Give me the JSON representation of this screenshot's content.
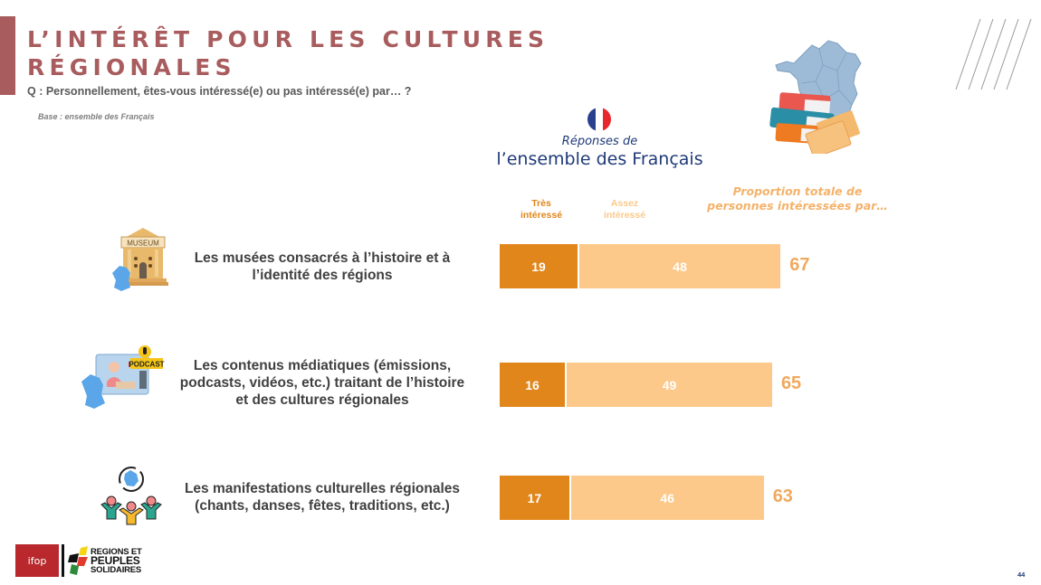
{
  "header": {
    "title_line1": "L’INTÉRÊT POUR LES CULTURES",
    "title_line2": "RÉGIONALES",
    "question": "Q : Personnellement, êtes-vous intéressé(e) ou pas intéressé(e) par… ?",
    "base": "Base : ensemble des Français",
    "accent_color": "#A95C5E"
  },
  "respondents": {
    "flag_icon": "france-flag-icon",
    "label_small": "Réponses de",
    "label_big": "l’ensemble des Français"
  },
  "chart_data": {
    "type": "bar",
    "orientation": "horizontal",
    "stacked": true,
    "categories": [
      "Les musées consacrés à l’histoire et à l’identité des régions",
      "Les contenus médiatiques (émissions, podcasts, vidéos, etc.) traitant de l’histoire et des cultures régionales",
      "Les manifestations culturelles régionales (chants, danses, fêtes, traditions, etc.)"
    ],
    "category_lines": [
      [
        "Les musées consacrés à l’histoire et à",
        "l’identité des régions"
      ],
      [
        "Les contenus médiatiques (émissions,",
        "podcasts, vidéos, etc.) traitant de l’histoire",
        "et des cultures régionales"
      ],
      [
        "Les manifestations culturelles régionales",
        "(chants, danses, fêtes, traditions, etc.)"
      ]
    ],
    "category_icons": [
      "museum-icon",
      "podcast-icon",
      "festival-people-icon"
    ],
    "series": [
      {
        "name": "Très intéressé",
        "legend_lines": [
          "Très",
          "intéressé"
        ],
        "color": "#E0861A",
        "values": [
          19,
          16,
          17
        ]
      },
      {
        "name": "Assez intéressé",
        "legend_lines": [
          "Assez",
          "intéressé"
        ],
        "color": "#FDC98A",
        "values": [
          48,
          49,
          46
        ]
      }
    ],
    "totals": {
      "label_lines": [
        "Proportion totale de",
        "personnes intéressées par…"
      ],
      "values": [
        67,
        65,
        63
      ],
      "color": "#F0A95E"
    },
    "units": "%",
    "xlim": [
      0,
      100
    ],
    "grid": false,
    "axes_visible": false,
    "legend_position": "top"
  },
  "footer": {
    "ifop_logo_text": "ifop",
    "partner_logo_lines": [
      "REGIONS ET",
      "PEUPLES",
      "SOLIDAIRES"
    ],
    "page_number": "44"
  }
}
